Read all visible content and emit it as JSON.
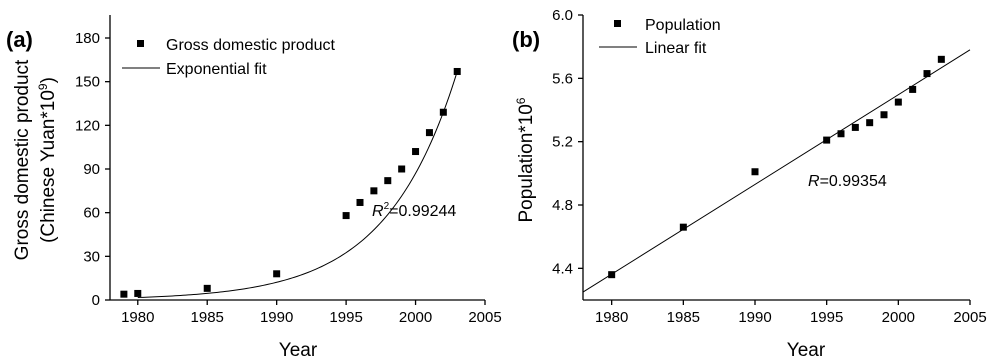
{
  "chart_data": [
    {
      "panel_label": "(a)",
      "type": "scatter",
      "xlabel": "Year",
      "ylabel_line1": "Gross domestic product",
      "ylabel_line2_prefix": "(Chinese Yuan*10",
      "ylabel_line2_sup": "9",
      "ylabel_line2_suffix": ")",
      "xlim": [
        1978,
        2005
      ],
      "ylim": [
        0,
        180
      ],
      "x_ticks": [
        1980,
        1985,
        1990,
        1995,
        2000,
        2005
      ],
      "y_ticks": [
        0,
        30,
        60,
        90,
        120,
        150,
        180
      ],
      "series": [
        {
          "name": "Gross domestic product",
          "kind": "points",
          "x": [
            1979,
            1980,
            1985,
            1990,
            1995,
            1996,
            1997,
            1998,
            1999,
            2000,
            2001,
            2002,
            2003
          ],
          "y": [
            4,
            4.5,
            8,
            18,
            58,
            67,
            75,
            82,
            90,
            102,
            115,
            129,
            157
          ]
        },
        {
          "name": "Exponential fit",
          "kind": "fit",
          "model": "exponential",
          "x_range": [
            1980,
            2003
          ],
          "y_range": [
            1.7,
            157
          ]
        }
      ],
      "annotation": {
        "var": "R",
        "sup": "2",
        "value": "=0.99244"
      },
      "grid": false,
      "legend_position": "top-left"
    },
    {
      "panel_label": "(b)",
      "type": "scatter",
      "xlabel": "Year",
      "ylabel_prefix": "Population*10",
      "ylabel_sup": "6",
      "xlim": [
        1978,
        2005
      ],
      "ylim": [
        4.2,
        6.0
      ],
      "x_ticks": [
        1980,
        1985,
        1990,
        1995,
        2000,
        2005
      ],
      "y_ticks": [
        4.4,
        4.8,
        5.2,
        5.6,
        6.0
      ],
      "y_tick_labels": [
        "4.4",
        "4.8",
        "5.2",
        "5.6",
        "6.0"
      ],
      "series": [
        {
          "name": "Population",
          "kind": "points",
          "x": [
            1980,
            1985,
            1990,
            1995,
            1996,
            1997,
            1998,
            1999,
            2000,
            2001,
            2002,
            2003
          ],
          "y": [
            4.36,
            4.66,
            5.01,
            5.21,
            5.25,
            5.29,
            5.32,
            5.37,
            5.45,
            5.53,
            5.63,
            5.72
          ]
        },
        {
          "name": "Linear fit",
          "kind": "fit",
          "model": "linear",
          "x_range": [
            1978,
            2005
          ],
          "y_range": [
            4.25,
            5.78
          ]
        }
      ],
      "annotation": {
        "var": "R",
        "value": "=0.99354"
      },
      "grid": false,
      "legend_position": "top-left"
    }
  ]
}
